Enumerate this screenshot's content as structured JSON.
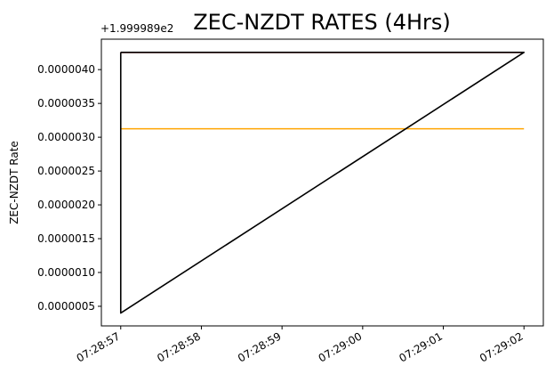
{
  "chart_data": {
    "type": "line",
    "title": "ZEC-NZDT RATES (4Hrs)",
    "xlabel": "",
    "ylabel": "ZEC-NZDT Rate",
    "y_offset_label": "+1.999989e2",
    "x_tick_labels": [
      "07:28:57",
      "07:28:58",
      "07:28:59",
      "07:29:00",
      "07:29:01",
      "07:29:02"
    ],
    "x_ticks": [
      0,
      1,
      2,
      3,
      4,
      5
    ],
    "xlim": [
      -0.24,
      5.24
    ],
    "y_tick_labels": [
      "0.0000005",
      "0.0000010",
      "0.0000015",
      "0.0000020",
      "0.0000025",
      "0.0000030",
      "0.0000035",
      "0.0000040"
    ],
    "y_ticks": [
      5e-07,
      1e-06,
      1.5e-06,
      2e-06,
      2.5e-06,
      3e-06,
      3.5e-06,
      4e-06
    ],
    "ylim": [
      2.1e-07,
      4.45e-06
    ],
    "grid": false,
    "series": [
      {
        "color": "#ff0000",
        "x": [
          0,
          5
        ],
        "y": [
          4.255e-06,
          4.255e-06
        ]
      },
      {
        "color": "#ffa500",
        "x": [
          0,
          5
        ],
        "y": [
          3.125e-06,
          3.125e-06
        ]
      },
      {
        "color": "#000000",
        "x": [
          0,
          0,
          5,
          0
        ],
        "y": [
          4.255e-06,
          4e-07,
          4.255e-06,
          4.255e-06
        ]
      }
    ]
  }
}
